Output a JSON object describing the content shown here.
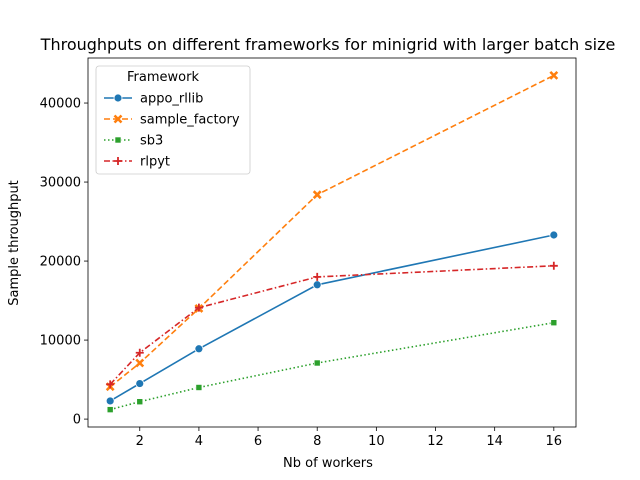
{
  "chart_data": {
    "type": "line",
    "title": "Throughputs on different frameworks for minigrid with larger batch size",
    "xlabel": "Nb of workers",
    "ylabel": "Sample throughput",
    "xlim": [
      0.25,
      16.75
    ],
    "ylim": [
      -1000,
      45700
    ],
    "xticks": [
      2,
      4,
      6,
      8,
      10,
      12,
      14,
      16
    ],
    "yticks": [
      0,
      10000,
      20000,
      30000,
      40000
    ],
    "grid": false,
    "legend": {
      "title": "Framework",
      "placement": "top-left"
    },
    "series": [
      {
        "name": "appo_rllib",
        "color": "#1f77b4",
        "dash": "solid",
        "marker": "circle",
        "x": [
          1,
          2,
          4,
          8,
          16
        ],
        "y": [
          2300,
          4500,
          8900,
          17000,
          23300
        ]
      },
      {
        "name": "sample_factory",
        "color": "#ff7f0e",
        "dash": "dashed",
        "marker": "x",
        "x": [
          1,
          2,
          4,
          8,
          16
        ],
        "y": [
          4100,
          7100,
          14000,
          28400,
          43500
        ]
      },
      {
        "name": "sb3",
        "color": "#2ca02c",
        "dash": "dotted",
        "marker": "square",
        "x": [
          1,
          2,
          4,
          8,
          16
        ],
        "y": [
          1200,
          2200,
          4000,
          7100,
          12200
        ]
      },
      {
        "name": "rlpyt",
        "color": "#d62728",
        "dash": "dashdot",
        "marker": "plus",
        "x": [
          1,
          2,
          4,
          8,
          16
        ],
        "y": [
          4400,
          8400,
          14100,
          18000,
          19400
        ]
      }
    ]
  }
}
